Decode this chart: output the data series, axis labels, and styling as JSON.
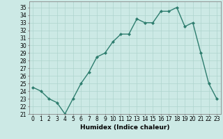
{
  "x": [
    0,
    1,
    2,
    3,
    4,
    5,
    6,
    7,
    8,
    9,
    10,
    11,
    12,
    13,
    14,
    15,
    16,
    17,
    18,
    19,
    20,
    21,
    22,
    23
  ],
  "y": [
    24.5,
    24.0,
    23.0,
    22.5,
    21.0,
    23.0,
    25.0,
    26.5,
    28.5,
    29.0,
    30.5,
    31.5,
    31.5,
    33.5,
    33.0,
    33.0,
    34.5,
    34.5,
    35.0,
    32.5,
    33.0,
    29.0,
    25.0,
    23.0
  ],
  "line_color": "#2e7d6e",
  "marker": "D",
  "marker_size": 2,
  "bg_color": "#cce9e5",
  "grid_color": "#aed4ce",
  "xlabel": "Humidex (Indice chaleur)",
  "xlim": [
    -0.5,
    23.5
  ],
  "ylim": [
    21,
    35.8
  ],
  "yticks": [
    21,
    22,
    23,
    24,
    25,
    26,
    27,
    28,
    29,
    30,
    31,
    32,
    33,
    34,
    35
  ],
  "xticks": [
    0,
    1,
    2,
    3,
    4,
    5,
    6,
    7,
    8,
    9,
    10,
    11,
    12,
    13,
    14,
    15,
    16,
    17,
    18,
    19,
    20,
    21,
    22,
    23
  ],
  "tick_fontsize": 5.5,
  "xlabel_fontsize": 6.5,
  "linewidth": 1.0
}
